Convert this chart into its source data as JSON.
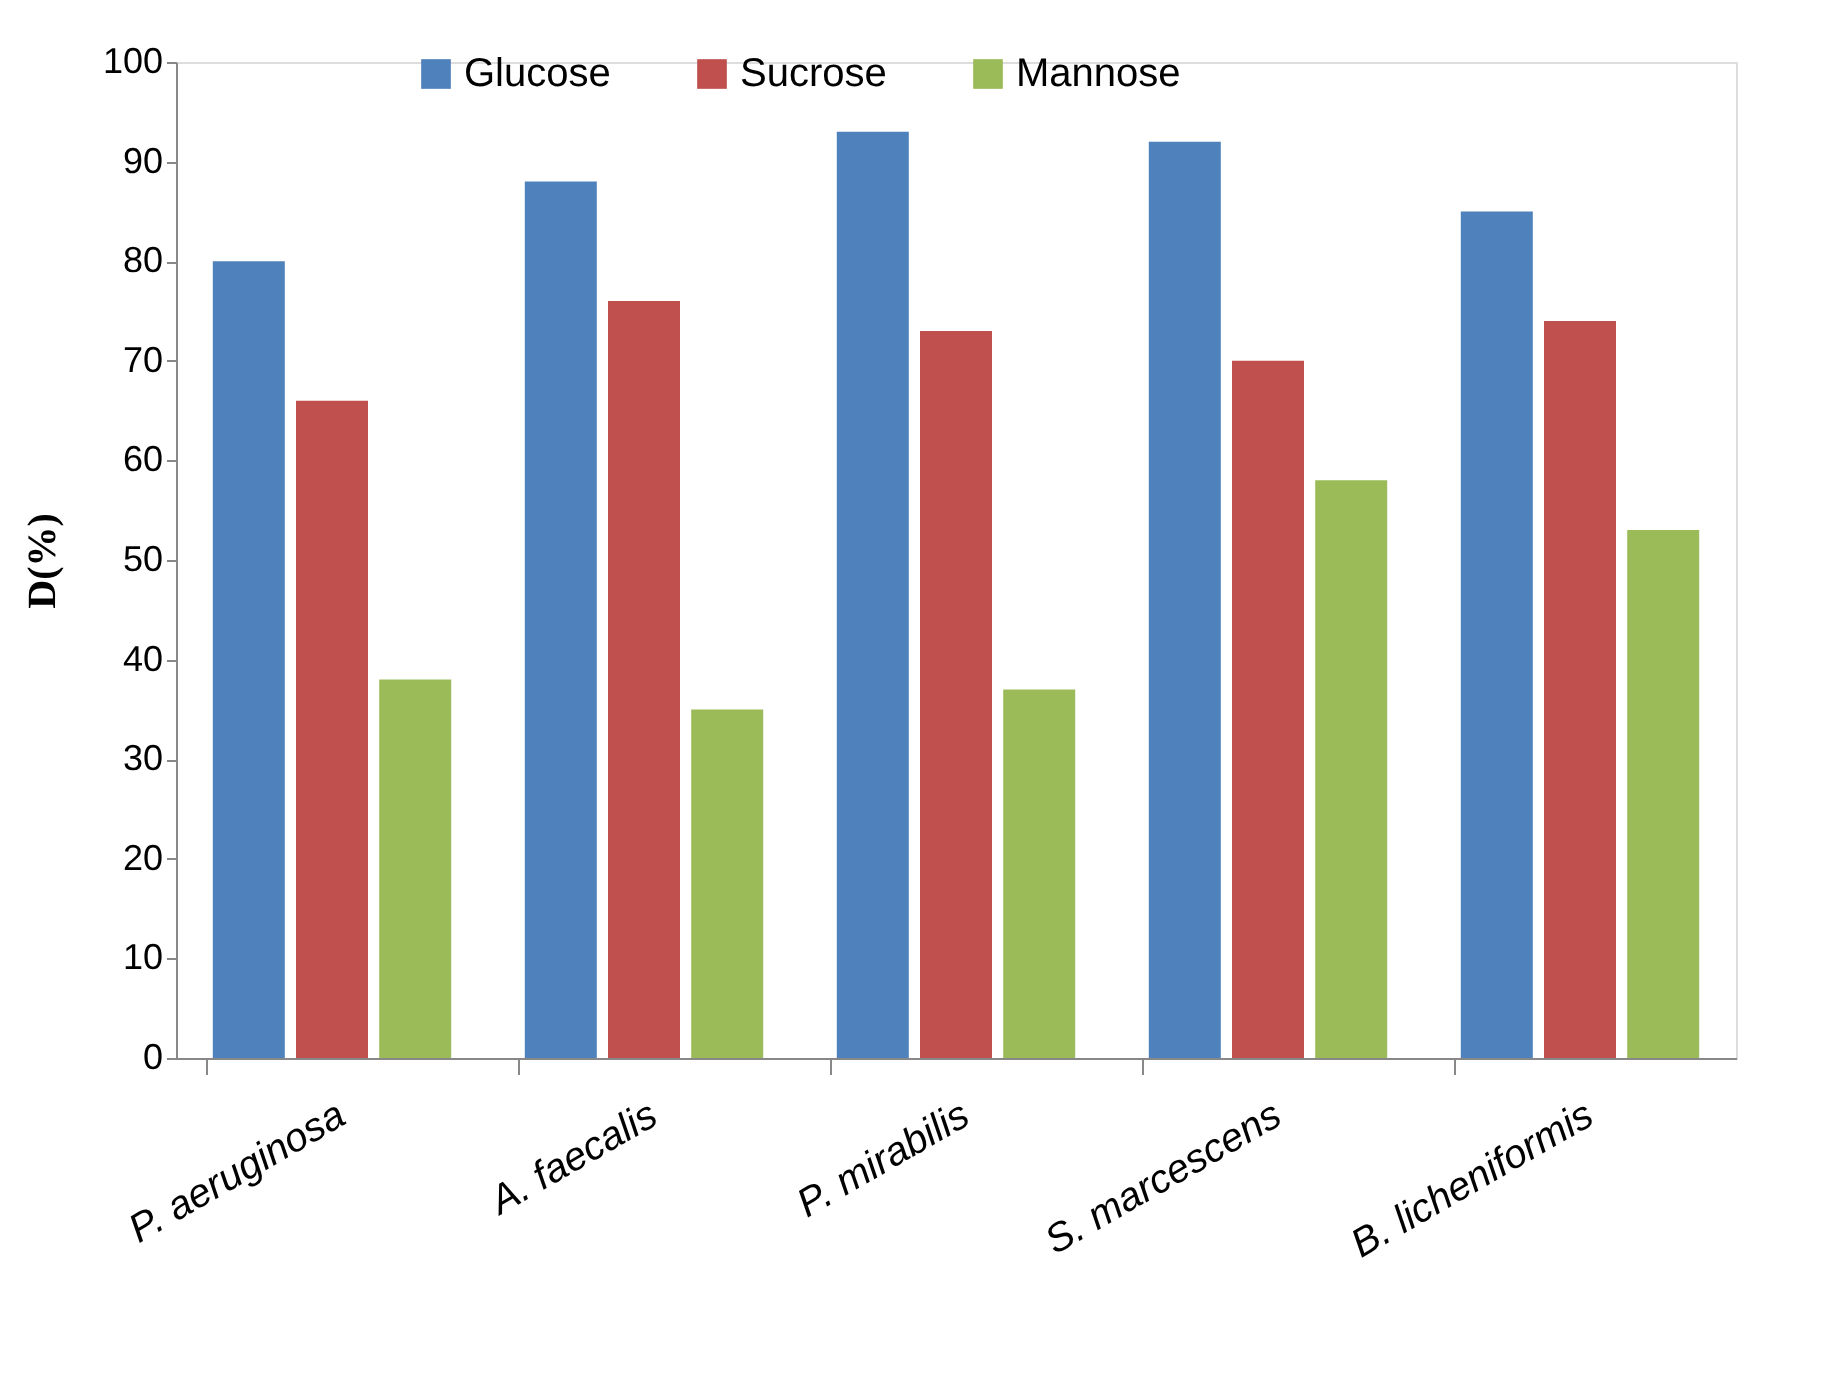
{
  "chart_data": {
    "type": "bar",
    "ylabel": "D(%)",
    "categories": [
      "P. aeruginosa",
      "A. faecalis",
      "P. mirabilis",
      "S. marcescens",
      "B. licheniformis"
    ],
    "series": [
      {
        "name": "Glucose",
        "color": "#4f81bd",
        "values": [
          80,
          88,
          93,
          92,
          85
        ]
      },
      {
        "name": "Sucrose",
        "color": "#c0504d",
        "values": [
          66,
          76,
          73,
          70,
          74
        ]
      },
      {
        "name": "Mannose",
        "color": "#9bbb59",
        "values": [
          38,
          35,
          37,
          58,
          53
        ]
      }
    ],
    "ylim": [
      0,
      100
    ],
    "yticks": [
      0,
      10,
      20,
      30,
      40,
      50,
      60,
      70,
      80,
      90,
      100
    ],
    "grid": false,
    "legend": "top"
  }
}
